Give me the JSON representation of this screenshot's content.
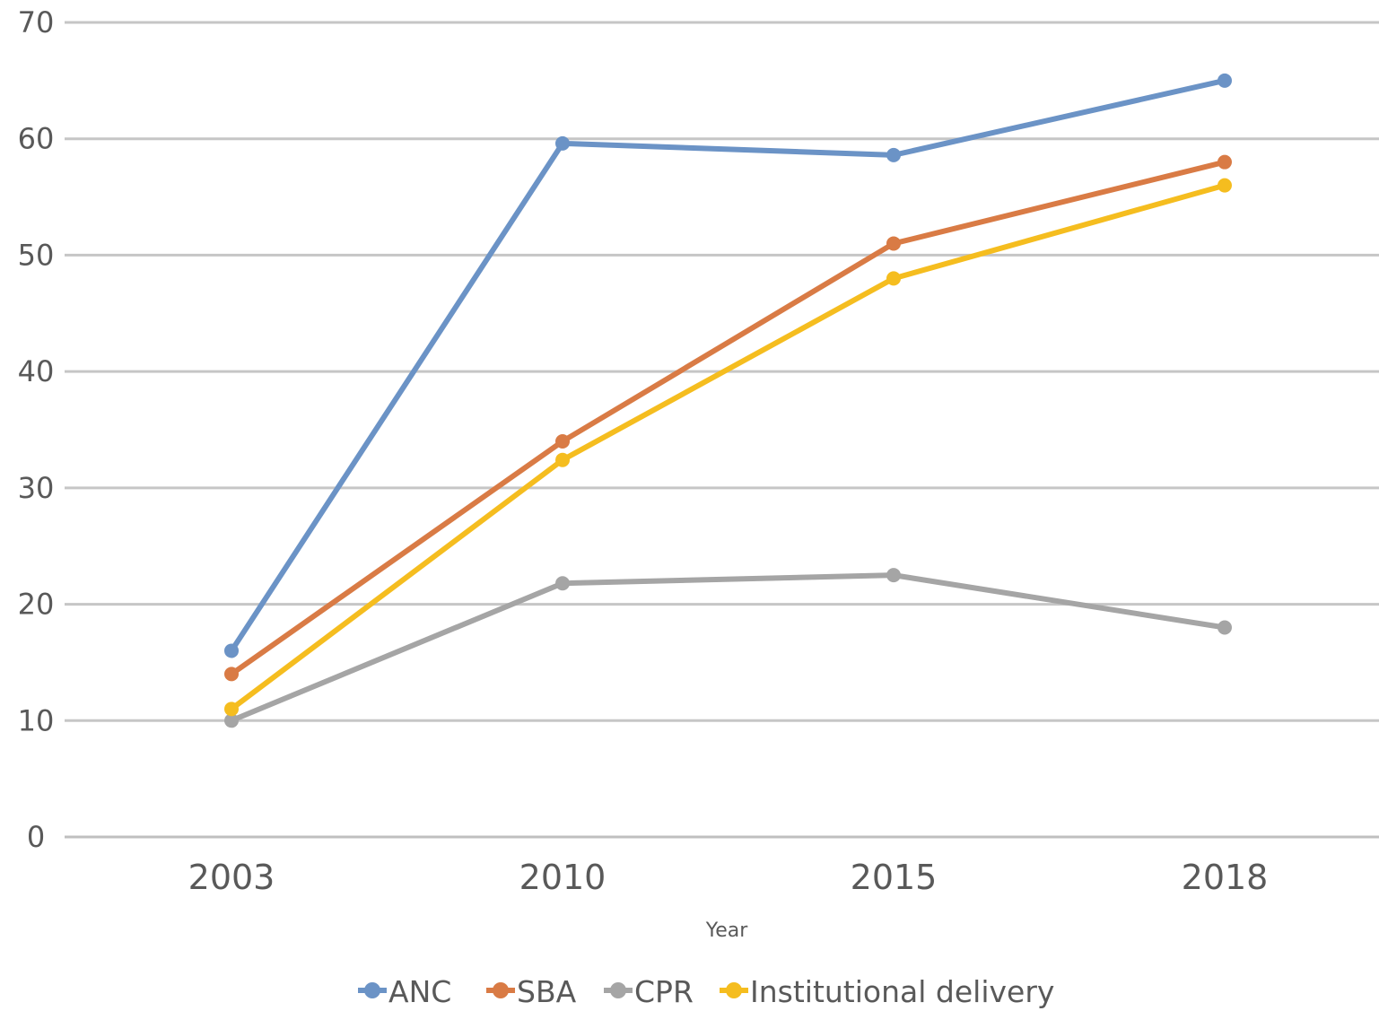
{
  "chart_data": {
    "type": "line",
    "title": "",
    "xlabel": "Year",
    "ylabel": "",
    "categories": [
      "2003",
      "2010",
      "2015",
      "2018"
    ],
    "ylim": [
      0,
      70
    ],
    "yticks": [
      0,
      10,
      20,
      30,
      40,
      50,
      60,
      70
    ],
    "grid": true,
    "legend_position": "bottom",
    "series": [
      {
        "name": "ANC",
        "color": "#6b93c6",
        "values": [
          16,
          59.6,
          58.6,
          65
        ]
      },
      {
        "name": "SBA",
        "color": "#d97b45",
        "values": [
          14,
          34,
          51,
          58
        ]
      },
      {
        "name": "CPR",
        "color": "#a5a5a5",
        "values": [
          10,
          21.8,
          22.5,
          18
        ]
      },
      {
        "name": "Institutional delivery",
        "color": "#f5bd1f",
        "values": [
          11,
          32.4,
          48,
          56
        ]
      }
    ]
  }
}
